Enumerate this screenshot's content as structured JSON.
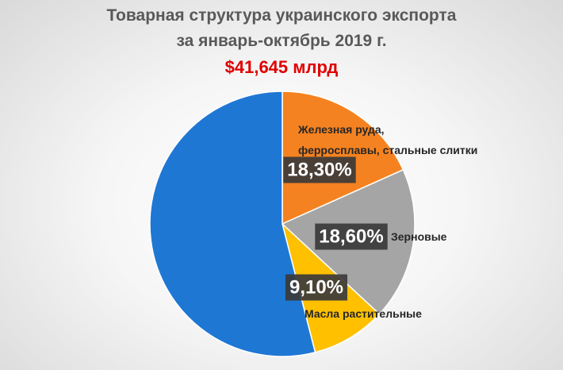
{
  "chart_data": {
    "type": "pie",
    "title_lines": [
      "Товарная структура украинского экспорта",
      "за январь-октябрь 2019 г."
    ],
    "subtitle": "$41,645 млрд",
    "slices": [
      {
        "label": "Железная руда, ферросплавы, стальные слитки",
        "label_lines": [
          "Железная руда,",
          "ферросплавы, стальные слитки"
        ],
        "value": 18.3,
        "display": "18,30%",
        "color": "#f58220"
      },
      {
        "label": "Зерновые",
        "label_lines": [
          "Зерновые"
        ],
        "value": 18.6,
        "display": "18,60%",
        "color": "#a5a5a5"
      },
      {
        "label": "Масла растительные",
        "label_lines": [
          "Масла растительные"
        ],
        "value": 9.1,
        "display": "9,10%",
        "color": "#ffc000"
      },
      {
        "label": "",
        "label_lines": [],
        "value": 54.0,
        "display": "",
        "color": "#1f77d4"
      }
    ]
  }
}
